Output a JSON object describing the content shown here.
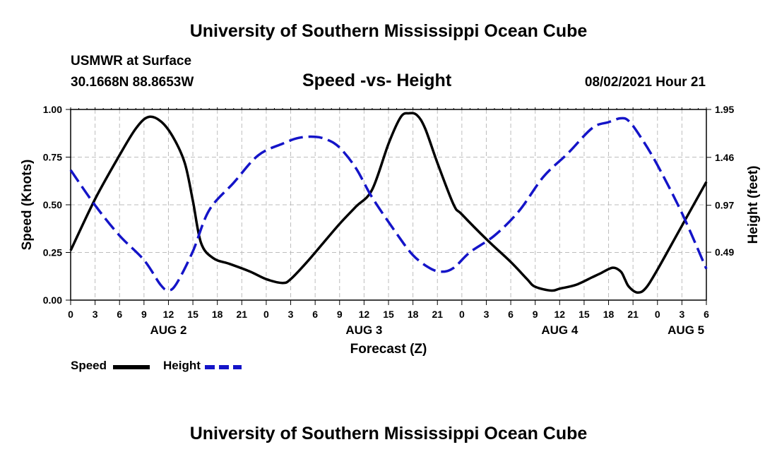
{
  "header": {
    "top_title": "University of Southern Mississippi Ocean Cube",
    "station_name": "USMWR at Surface",
    "station_coords": "30.1668N  88.8653W",
    "chart_title": "Speed -vs- Height",
    "run_time": "08/02/2021 Hour 21",
    "bottom_title": "University of Southern Mississippi Ocean Cube"
  },
  "legend": {
    "speed_label": "Speed",
    "height_label": "Height"
  },
  "colors": {
    "speed": "#000000",
    "height": "#1414c8",
    "grid": "#bdbdbd"
  },
  "chart_data": {
    "type": "line",
    "xlabel": "Forecast (Z)",
    "x_range_hours": [
      0,
      78
    ],
    "x_ticks": [
      {
        "h": 0,
        "label": "0"
      },
      {
        "h": 3,
        "label": "3"
      },
      {
        "h": 6,
        "label": "6"
      },
      {
        "h": 9,
        "label": "9"
      },
      {
        "h": 12,
        "label": "12"
      },
      {
        "h": 15,
        "label": "15"
      },
      {
        "h": 18,
        "label": "18"
      },
      {
        "h": 21,
        "label": "21"
      },
      {
        "h": 24,
        "label": "0"
      },
      {
        "h": 27,
        "label": "3"
      },
      {
        "h": 30,
        "label": "6"
      },
      {
        "h": 33,
        "label": "9"
      },
      {
        "h": 36,
        "label": "12"
      },
      {
        "h": 39,
        "label": "15"
      },
      {
        "h": 42,
        "label": "18"
      },
      {
        "h": 45,
        "label": "21"
      },
      {
        "h": 48,
        "label": "0"
      },
      {
        "h": 51,
        "label": "3"
      },
      {
        "h": 54,
        "label": "6"
      },
      {
        "h": 57,
        "label": "9"
      },
      {
        "h": 60,
        "label": "12"
      },
      {
        "h": 63,
        "label": "15"
      },
      {
        "h": 66,
        "label": "18"
      },
      {
        "h": 69,
        "label": "21"
      },
      {
        "h": 72,
        "label": "0"
      },
      {
        "h": 75,
        "label": "3"
      },
      {
        "h": 78,
        "label": "6"
      }
    ],
    "date_labels": [
      {
        "h": 12,
        "label": "AUG 2"
      },
      {
        "h": 36,
        "label": "AUG 3"
      },
      {
        "h": 60,
        "label": "AUG 4"
      },
      {
        "h": 75.5,
        "label": "AUG 5"
      }
    ],
    "y_left": {
      "label": "Speed (Knots)",
      "range": [
        0,
        1
      ],
      "ticks": [
        {
          "v": 0,
          "label": "0.00"
        },
        {
          "v": 0.25,
          "label": "0.25"
        },
        {
          "v": 0.5,
          "label": "0.50"
        },
        {
          "v": 0.75,
          "label": "0.75"
        },
        {
          "v": 1,
          "label": "1.00"
        }
      ]
    },
    "y_right": {
      "label": "Height (feet)",
      "range": [
        0,
        1.95
      ],
      "ticks": [
        {
          "v": 0.49,
          "label": "0.49"
        },
        {
          "v": 0.97,
          "label": "0.97"
        },
        {
          "v": 1.46,
          "label": "1.46"
        },
        {
          "v": 1.95,
          "label": "1.95"
        }
      ]
    },
    "series": [
      {
        "name": "Speed",
        "axis": "left",
        "style": "solid",
        "x": [
          0,
          3,
          6,
          8,
          9.5,
          11,
          12.5,
          14,
          15,
          16,
          17.5,
          19.5,
          22,
          24,
          26,
          27,
          29,
          31,
          33,
          35,
          37,
          39,
          40.5,
          41.5,
          42.5,
          43.5,
          45,
          47,
          48,
          51,
          54,
          56,
          57,
          59,
          60,
          62,
          64,
          65,
          66.5,
          67.5,
          68,
          68.5,
          69.5,
          70.5,
          72,
          75,
          78
        ],
        "y": [
          0.26,
          0.53,
          0.76,
          0.9,
          0.96,
          0.94,
          0.86,
          0.72,
          0.52,
          0.3,
          0.22,
          0.19,
          0.15,
          0.11,
          0.09,
          0.11,
          0.2,
          0.3,
          0.4,
          0.49,
          0.58,
          0.82,
          0.96,
          0.98,
          0.97,
          0.9,
          0.72,
          0.5,
          0.45,
          0.32,
          0.2,
          0.11,
          0.07,
          0.05,
          0.06,
          0.08,
          0.12,
          0.14,
          0.17,
          0.15,
          0.11,
          0.07,
          0.04,
          0.06,
          0.16,
          0.39,
          0.62
        ]
      },
      {
        "name": "Height",
        "axis": "right",
        "style": "dashed",
        "x": [
          0,
          3,
          6,
          9,
          11,
          12,
          13,
          15,
          17,
          20,
          23,
          26,
          28,
          30,
          31.5,
          33,
          35,
          37,
          40,
          42,
          44,
          45.5,
          47,
          49,
          52,
          55,
          58,
          61,
          64,
          66,
          67.5,
          68.5,
          70,
          72,
          75,
          78
        ],
        "y": [
          1.33,
          0.97,
          0.66,
          0.41,
          0.16,
          0.1,
          0.17,
          0.5,
          0.92,
          1.2,
          1.48,
          1.6,
          1.66,
          1.67,
          1.64,
          1.56,
          1.35,
          1.05,
          0.68,
          0.46,
          0.33,
          0.29,
          0.33,
          0.49,
          0.66,
          0.91,
          1.26,
          1.5,
          1.76,
          1.82,
          1.86,
          1.83,
          1.66,
          1.38,
          0.89,
          0.32
        ]
      }
    ]
  }
}
